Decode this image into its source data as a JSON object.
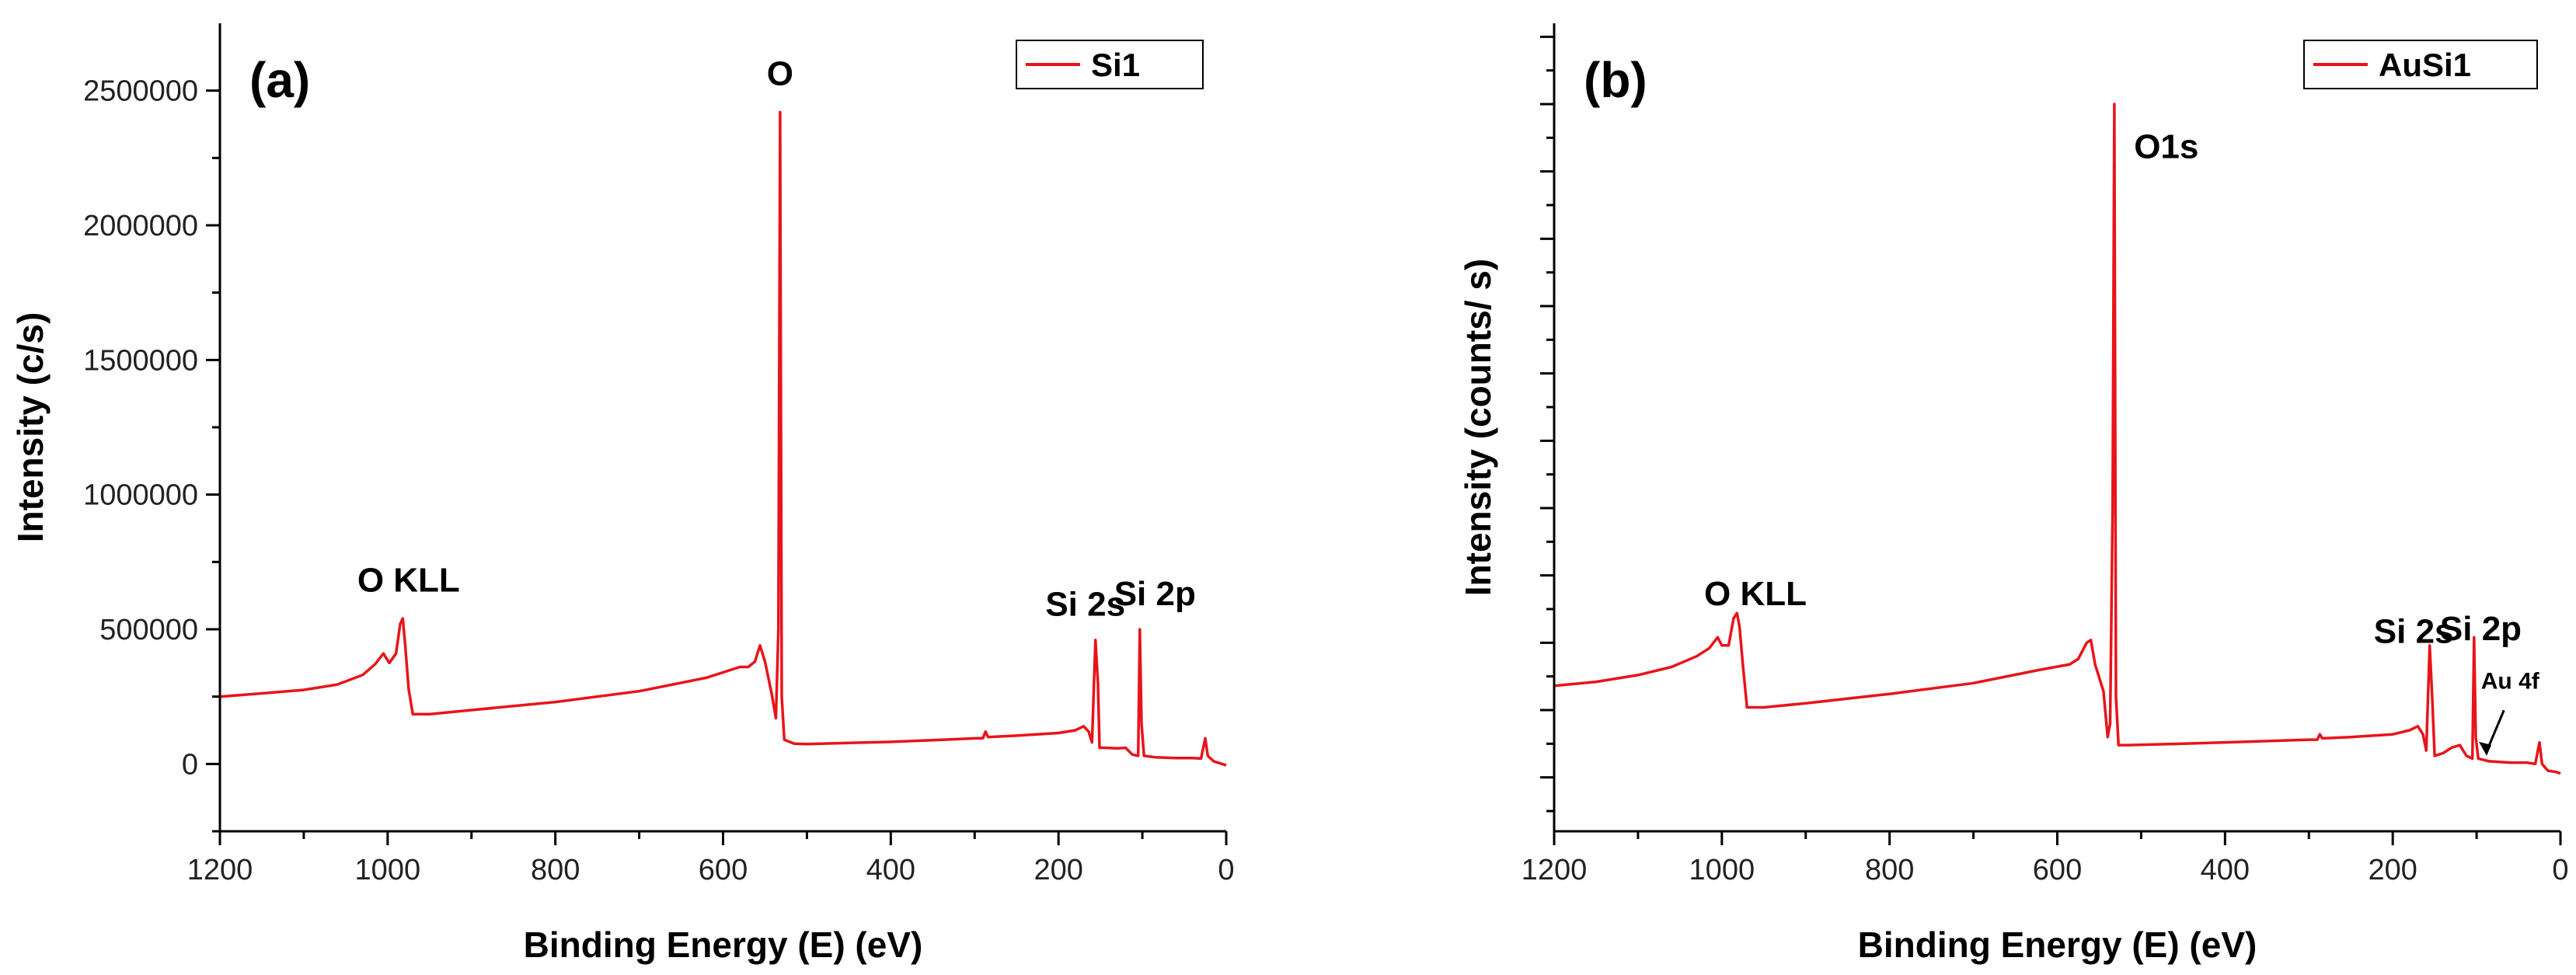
{
  "colors": {
    "series": "#e8141a",
    "axis": "#000000"
  },
  "chart_data": [
    {
      "type": "line",
      "panel_label": "(a)",
      "xlabel": "Binding Energy (E) (eV)",
      "ylabel": "Intensity (c/s)",
      "xlim": [
        1200,
        0
      ],
      "ylim": [
        -250000,
        2750000
      ],
      "x_ticks": [
        1200,
        1000,
        800,
        600,
        400,
        200,
        0
      ],
      "y_ticks": [
        0,
        500000,
        1000000,
        1500000,
        2000000,
        2500000
      ],
      "y_tick_labels": [
        "0",
        "500000",
        "1000000",
        "1500000",
        "2000000",
        "2500000"
      ],
      "show_y_tick_labels": true,
      "legend": {
        "label": "Si1",
        "position": "top-right"
      },
      "series": [
        {
          "name": "Si1",
          "points": [
            [
              1200,
              250000
            ],
            [
              1150,
              262000
            ],
            [
              1100,
              275000
            ],
            [
              1060,
              295000
            ],
            [
              1030,
              330000
            ],
            [
              1015,
              370000
            ],
            [
              1005,
              410000
            ],
            [
              998,
              375000
            ],
            [
              990,
              410000
            ],
            [
              985,
              520000
            ],
            [
              982,
              540000
            ],
            [
              979,
              440000
            ],
            [
              975,
              280000
            ],
            [
              970,
              185000
            ],
            [
              950,
              185000
            ],
            [
              900,
              200000
            ],
            [
              800,
              230000
            ],
            [
              700,
              270000
            ],
            [
              620,
              320000
            ],
            [
              580,
              360000
            ],
            [
              570,
              360000
            ],
            [
              562,
              380000
            ],
            [
              556,
              440000
            ],
            [
              550,
              380000
            ],
            [
              542,
              260000
            ],
            [
              537,
              170000
            ],
            [
              534,
              500000
            ],
            [
              532,
              2420000
            ],
            [
              530,
              250000
            ],
            [
              527,
              90000
            ],
            [
              515,
              75000
            ],
            [
              500,
              74000
            ],
            [
              450,
              78000
            ],
            [
              400,
              82000
            ],
            [
              350,
              88000
            ],
            [
              300,
              95000
            ],
            [
              290,
              96000
            ],
            [
              287,
              120000
            ],
            [
              284,
              100000
            ],
            [
              250,
              105000
            ],
            [
              200,
              115000
            ],
            [
              180,
              125000
            ],
            [
              170,
              140000
            ],
            [
              164,
              120000
            ],
            [
              160,
              80000
            ],
            [
              156,
              460000
            ],
            [
              153,
              300000
            ],
            [
              151,
              60000
            ],
            [
              145,
              60000
            ],
            [
              130,
              58000
            ],
            [
              120,
              60000
            ],
            [
              112,
              35000
            ],
            [
              105,
              30000
            ],
            [
              103,
              500000
            ],
            [
              101,
              150000
            ],
            [
              98,
              30000
            ],
            [
              85,
              25000
            ],
            [
              60,
              22000
            ],
            [
              40,
              22000
            ],
            [
              30,
              20000
            ],
            [
              25,
              95000
            ],
            [
              22,
              30000
            ],
            [
              15,
              10000
            ],
            [
              5,
              0
            ],
            [
              0,
              -5000
            ]
          ]
        }
      ],
      "annotations": [
        {
          "text": "O",
          "x": 532,
          "y": 2520000
        },
        {
          "text": "O KLL",
          "x": 975,
          "y": 640000
        },
        {
          "text": "Si 2s",
          "x": 168,
          "y": 550000
        },
        {
          "text": "Si 2p",
          "x": 85,
          "y": 590000
        }
      ]
    },
    {
      "type": "line",
      "panel_label": "(b)",
      "xlabel": "Binding Energy (E) (eV)",
      "ylabel": "Intensity (counts/ s)",
      "xlim": [
        1200,
        0
      ],
      "ylim": [
        -200000,
        2800000
      ],
      "x_ticks": [
        1200,
        1000,
        800,
        600,
        400,
        200,
        0
      ],
      "y_ticks": [
        0,
        250000,
        500000,
        750000,
        1000000,
        1250000,
        1500000,
        1750000,
        2000000,
        2250000,
        2500000,
        2750000
      ],
      "show_y_tick_labels": false,
      "legend": {
        "label": "AuSi1",
        "position": "top-right"
      },
      "series": [
        {
          "name": "AuSi1",
          "points": [
            [
              1200,
              340000
            ],
            [
              1150,
              355000
            ],
            [
              1100,
              380000
            ],
            [
              1060,
              410000
            ],
            [
              1030,
              450000
            ],
            [
              1015,
              480000
            ],
            [
              1005,
              520000
            ],
            [
              1000,
              490000
            ],
            [
              992,
              490000
            ],
            [
              986,
              590000
            ],
            [
              982,
              610000
            ],
            [
              979,
              560000
            ],
            [
              975,
              420000
            ],
            [
              970,
              260000
            ],
            [
              950,
              260000
            ],
            [
              900,
              275000
            ],
            [
              800,
              310000
            ],
            [
              700,
              350000
            ],
            [
              620,
              400000
            ],
            [
              585,
              420000
            ],
            [
              575,
              440000
            ],
            [
              565,
              500000
            ],
            [
              560,
              510000
            ],
            [
              555,
              420000
            ],
            [
              545,
              320000
            ],
            [
              540,
              150000
            ],
            [
              537,
              200000
            ],
            [
              534,
              1000000
            ],
            [
              532,
              2500000
            ],
            [
              530,
              300000
            ],
            [
              527,
              120000
            ],
            [
              515,
              120000
            ],
            [
              450,
              125000
            ],
            [
              400,
              130000
            ],
            [
              350,
              135000
            ],
            [
              300,
              140000
            ],
            [
              290,
              140000
            ],
            [
              287,
              160000
            ],
            [
              284,
              145000
            ],
            [
              250,
              150000
            ],
            [
              200,
              160000
            ],
            [
              180,
              175000
            ],
            [
              170,
              190000
            ],
            [
              164,
              160000
            ],
            [
              160,
              100000
            ],
            [
              156,
              490000
            ],
            [
              153,
              300000
            ],
            [
              150,
              80000
            ],
            [
              140,
              90000
            ],
            [
              130,
              110000
            ],
            [
              120,
              120000
            ],
            [
              112,
              80000
            ],
            [
              105,
              70000
            ],
            [
              103,
              520000
            ],
            [
              101,
              150000
            ],
            [
              98,
              70000
            ],
            [
              85,
              60000
            ],
            [
              60,
              55000
            ],
            [
              40,
              55000
            ],
            [
              30,
              50000
            ],
            [
              25,
              130000
            ],
            [
              22,
              50000
            ],
            [
              15,
              25000
            ],
            [
              5,
              20000
            ],
            [
              0,
              15000
            ]
          ]
        }
      ],
      "annotations": [
        {
          "text": "O1s",
          "x": 470,
          "y": 2300000
        },
        {
          "text": "O KLL",
          "x": 960,
          "y": 640000
        },
        {
          "text": "Si 2s",
          "x": 175,
          "y": 500000
        },
        {
          "text": "Si 2p",
          "x": 95,
          "y": 510000
        },
        {
          "text": "Au 4f",
          "x": 60,
          "y": 330000,
          "small": true,
          "arrow_to": [
            88,
            80000
          ]
        }
      ]
    }
  ]
}
